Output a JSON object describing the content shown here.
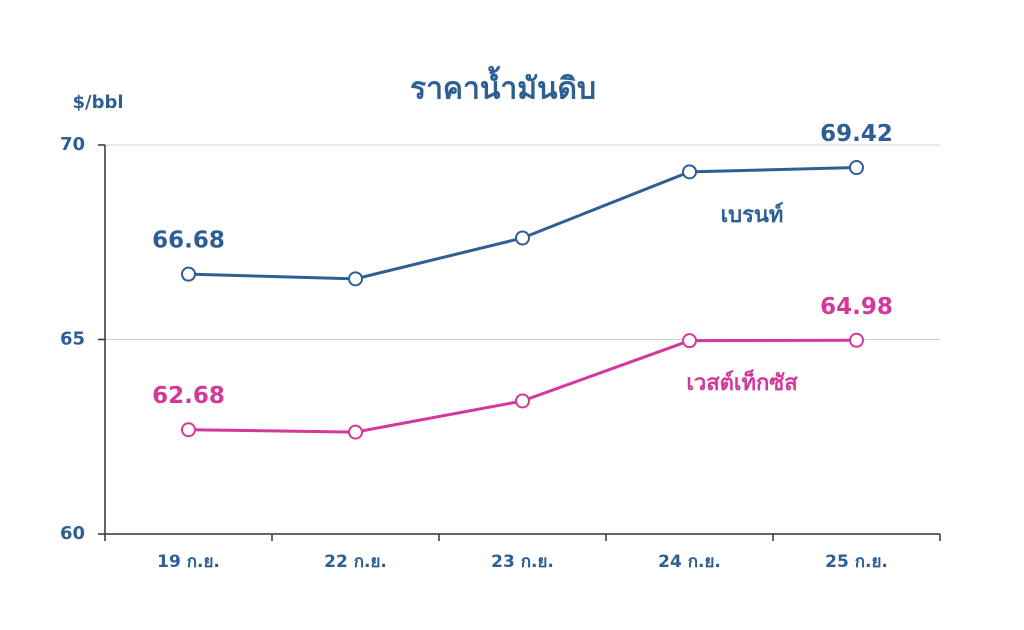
{
  "chart_data": {
    "type": "line",
    "title": "ราคาน้ำมันดิบ",
    "y_label": "$/bbl",
    "categories": [
      "19 ก.ย.",
      "22 ก.ย.",
      "23 ก.ย.",
      "24 ก.ย.",
      "25 ก.ย."
    ],
    "series": [
      {
        "name": "เบรนท์",
        "color": "#2e5f94",
        "values": [
          66.68,
          66.56,
          67.61,
          69.31,
          69.42
        ],
        "value_labels": [
          "66.68",
          null,
          null,
          null,
          "69.42"
        ]
      },
      {
        "name": "เวสต์เท็กซัส",
        "color": "#d2399a",
        "values": [
          62.68,
          62.62,
          63.42,
          64.97,
          64.98
        ],
        "value_labels": [
          "62.68",
          null,
          null,
          null,
          "64.98"
        ]
      }
    ],
    "ylim": [
      60,
      70
    ],
    "yticks": [
      60,
      65,
      70
    ],
    "grid": true
  }
}
